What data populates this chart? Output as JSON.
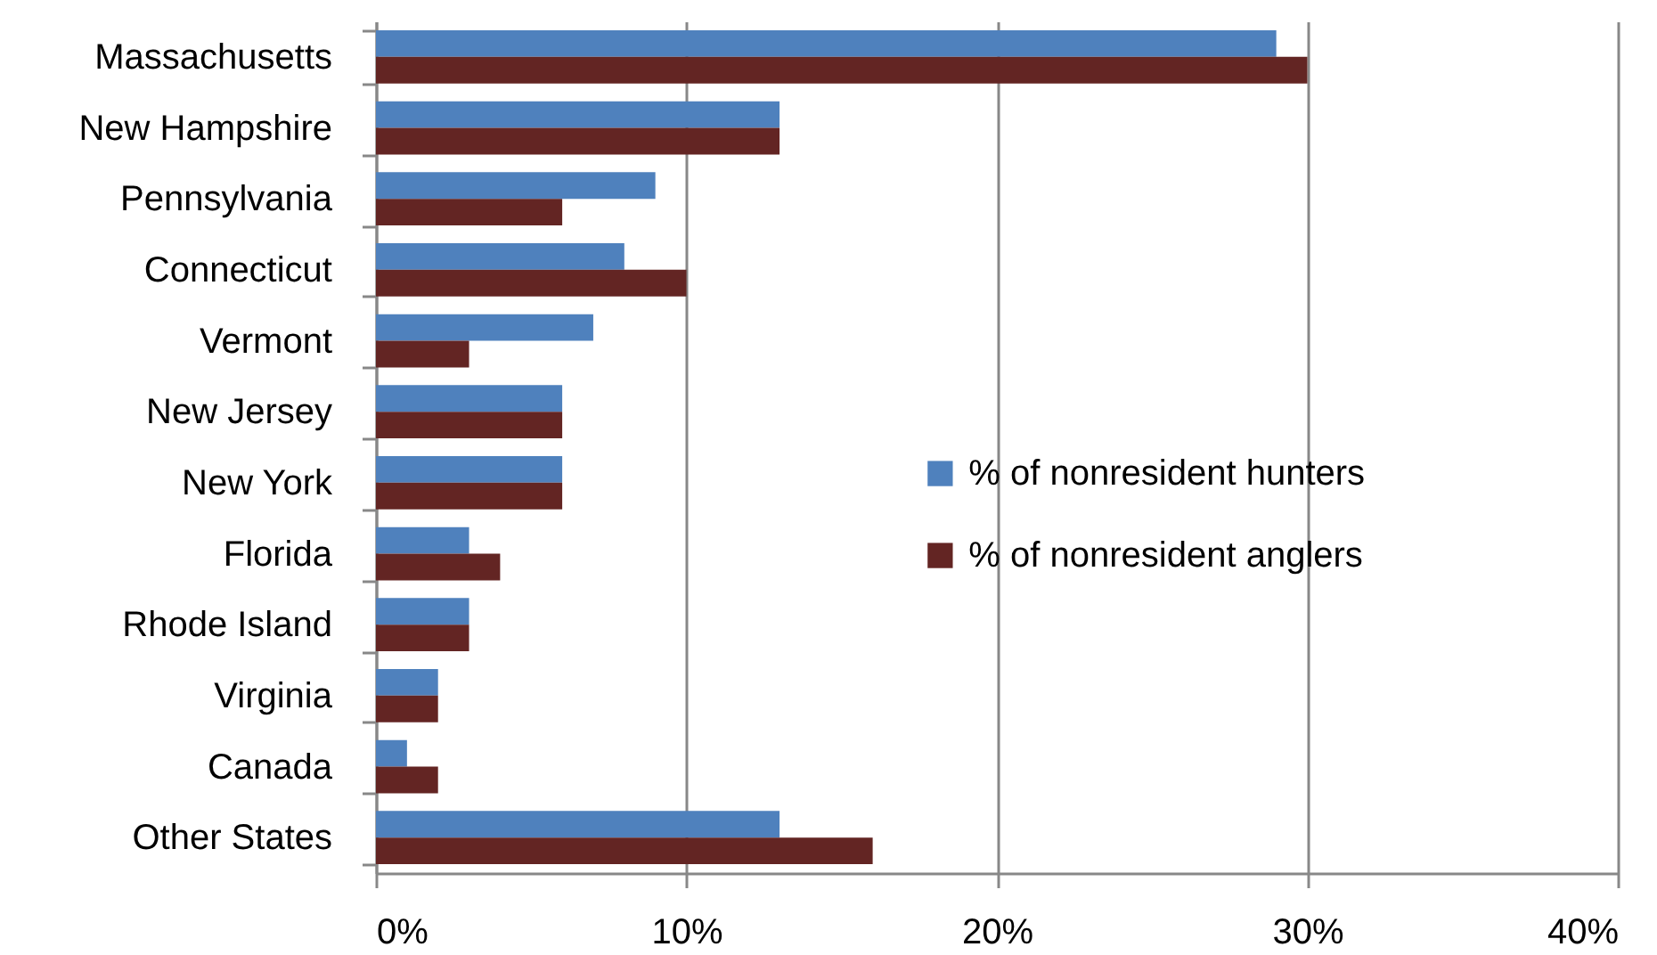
{
  "chart_data": {
    "type": "bar",
    "orientation": "horizontal",
    "categories": [
      "Massachusetts",
      "New Hampshire",
      "Pennsylvania",
      "Connecticut",
      "Vermont",
      "New Jersey",
      "New York",
      "Florida",
      "Rhode Island",
      "Virginia",
      "Canada",
      "Other States"
    ],
    "series": [
      {
        "name": "% of nonresident hunters",
        "color": "#4f81bd",
        "values": [
          29,
          13,
          9,
          8,
          7,
          6,
          6,
          3,
          3,
          2,
          1,
          13
        ]
      },
      {
        "name": "% of nonresident anglers",
        "color": "#632523",
        "values": [
          30,
          13,
          6,
          10,
          3,
          6,
          6,
          4,
          3,
          2,
          2,
          16
        ]
      }
    ],
    "xlim": [
      0,
      40
    ],
    "xticks": [
      {
        "value": 0,
        "label": "0%"
      },
      {
        "value": 10,
        "label": "10%"
      },
      {
        "value": 20,
        "label": "20%"
      },
      {
        "value": 30,
        "label": "30%"
      },
      {
        "value": 40,
        "label": "40%"
      }
    ],
    "grid": "x",
    "legend": "right"
  }
}
